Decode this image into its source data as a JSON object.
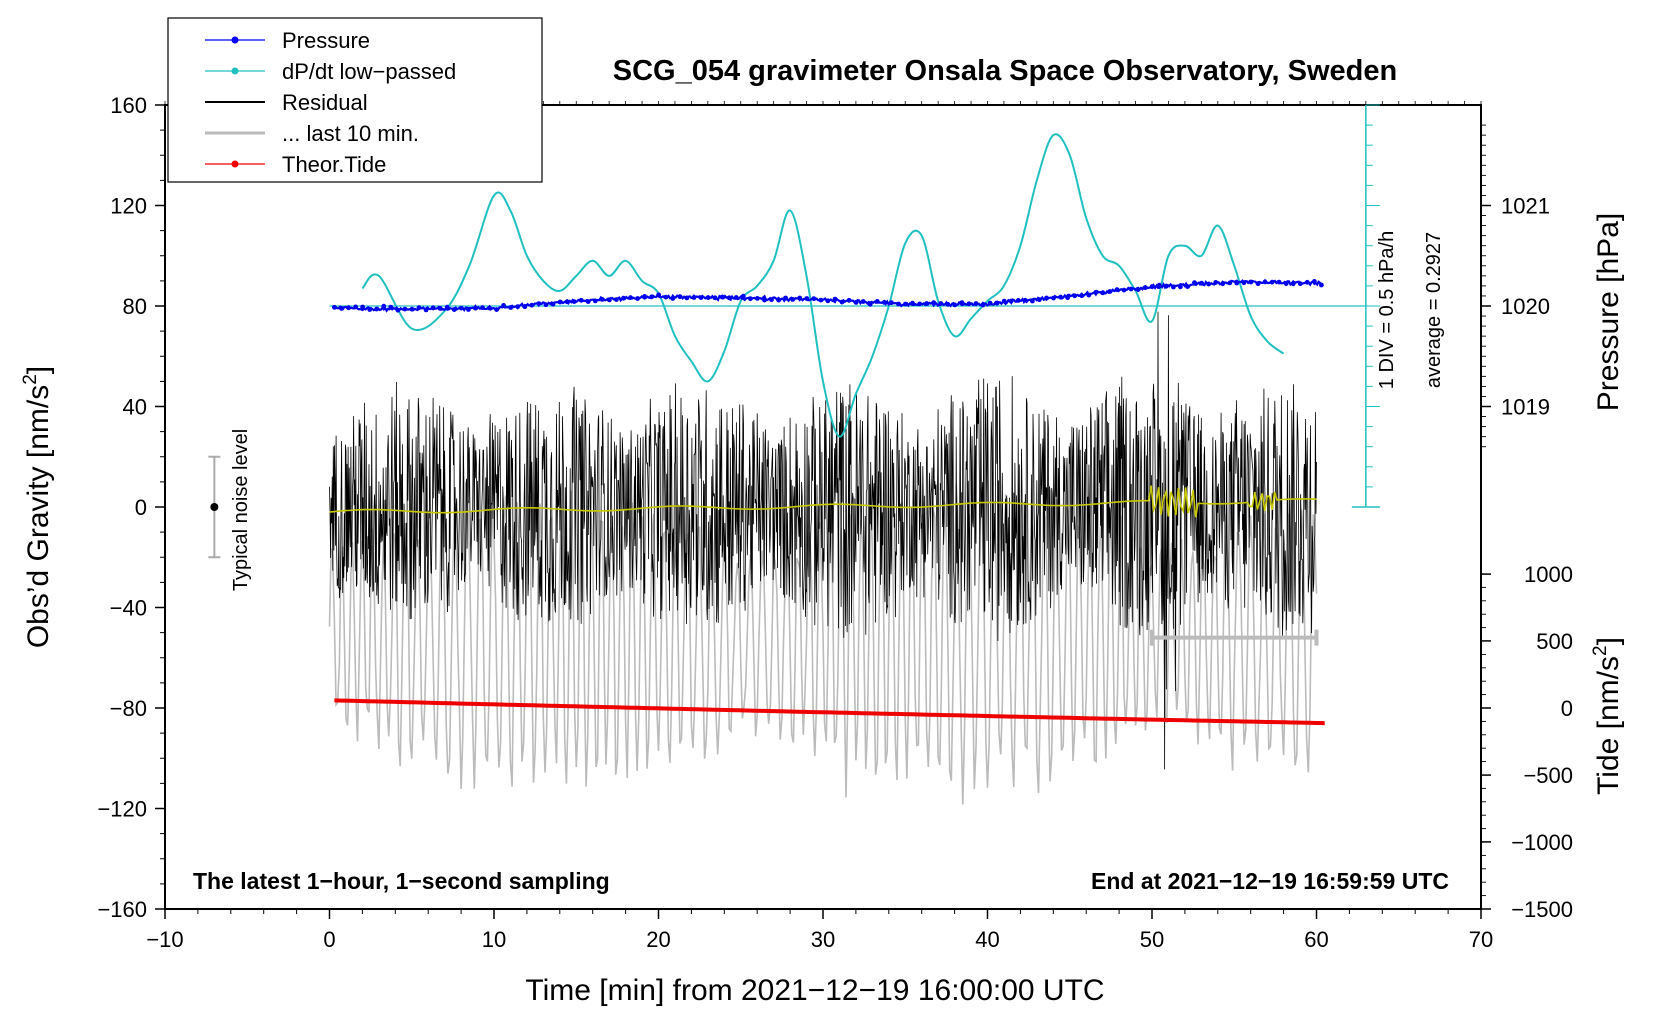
{
  "chart_data": {
    "type": "line",
    "title": "SCG_054 gravimeter Onsala Space Observatory, Sweden",
    "xlabel": "Time [min] from 2021−12−19 16:00:00 UTC",
    "ylabel_left_main": "Obs’d Gravity [nm/s",
    "ylabel_left_sup": "2",
    "ylabel_left_end": "]",
    "ylabel_right_pressure": "Pressure [hPa]",
    "ylabel_right_tide_main": "Tide [nm/s",
    "ylabel_right_tide_sup": "2",
    "ylabel_right_tide_end": "]",
    "xlim": [
      -10,
      70
    ],
    "ylim": [
      -160,
      160
    ],
    "x_ticks": [
      -10,
      0,
      10,
      20,
      30,
      40,
      50,
      60,
      70
    ],
    "x_tick_labels": [
      "−10",
      "0",
      "10",
      "20",
      "30",
      "40",
      "50",
      "60",
      "70"
    ],
    "y_ticks": [
      -160,
      -120,
      -80,
      -40,
      0,
      40,
      80,
      120,
      160
    ],
    "y_tick_labels": [
      "−160",
      "−120",
      "−80",
      "−40",
      "0",
      "40",
      "80",
      "120",
      "160"
    ],
    "pressure_axis": {
      "ticks": [
        1019,
        1020,
        1021
      ],
      "tick_labels": [
        "1019",
        "1020",
        "1021"
      ],
      "gravity_equiv": [
        40,
        80,
        120
      ]
    },
    "tide_axis": {
      "ticks": [
        1000,
        500,
        0,
        -500,
        -1000,
        -1500
      ],
      "tick_labels": [
        "1000",
        "500",
        "0",
        "−500",
        "−1000",
        "−1500"
      ],
      "gravity_equiv": [
        -26.7,
        -53.3,
        -80,
        -106.7,
        -133.3,
        -160
      ]
    },
    "legend": {
      "position": "top-left",
      "entries": [
        {
          "label": "Pressure",
          "color": "#0000ee",
          "marker": true
        },
        {
          "label": "dP/dt low−passed",
          "color": "#20c0c0",
          "marker": true
        },
        {
          "label": "Residual",
          "color": "#000000",
          "marker": false
        },
        {
          "label": "... last 10 min.",
          "color": "#bbbbbb",
          "marker": false
        },
        {
          "label": "Theor.Tide",
          "color": "#ee0000",
          "marker": true
        }
      ]
    },
    "annotations": {
      "bottom_left": "The latest 1−hour, 1−second sampling",
      "bottom_right": "End at 2021−12−19 16:59:59 UTC",
      "noise_label": "Typical noise level",
      "dpdt_scale": "1 DIV = 0.5 hPa/h",
      "dpdt_average": "average = 0.2927"
    },
    "series": [
      {
        "name": "Pressure",
        "color": "#0000ee",
        "unit": "hPa",
        "x": [
          0.3,
          5,
          10,
          15,
          20,
          25,
          30,
          35,
          40,
          45,
          50,
          55,
          60.3
        ],
        "values": [
          1019.98,
          1019.97,
          1019.98,
          1020.05,
          1020.09,
          1020.08,
          1020.06,
          1020.02,
          1020.02,
          1020.1,
          1020.19,
          1020.24,
          1020.23
        ]
      },
      {
        "name": "dP/dt low-passed",
        "color": "#20c0c0",
        "unit": "gravity-equivalent",
        "x": [
          2,
          3,
          5,
          7,
          8.5,
          10,
          11,
          12,
          13,
          14,
          15,
          16,
          17,
          18,
          19,
          20,
          21,
          22,
          23,
          24,
          25,
          26,
          27,
          28,
          29,
          30,
          31,
          32,
          33,
          34,
          35,
          36,
          37,
          38,
          39,
          40,
          41,
          42,
          43,
          44,
          45,
          46,
          47,
          48,
          49,
          50,
          51,
          52,
          53,
          54,
          55,
          56,
          57,
          58
        ],
        "values": [
          87,
          92,
          71,
          78,
          96,
          124,
          118,
          100,
          90,
          86,
          92,
          98,
          92,
          98,
          90,
          85,
          68,
          58,
          50,
          62,
          82,
          88,
          98,
          118,
          92,
          50,
          28,
          45,
          60,
          80,
          105,
          108,
          82,
          68,
          75,
          82,
          88,
          104,
          130,
          148,
          140,
          115,
          100,
          96,
          86,
          74,
          100,
          104,
          100,
          112,
          96,
          76,
          66,
          61
        ]
      },
      {
        "name": "Residual",
        "color": "#000000",
        "x": [
          0,
          60
        ],
        "envelope_amplitude": [
          35,
          40
        ],
        "values": [
          0,
          0
        ]
      },
      {
        "name": "... last 10 min.",
        "color": "#bbbbbb",
        "x": [
          50,
          60
        ],
        "values": [
          -52,
          -52
        ]
      },
      {
        "name": "Theor.Tide",
        "color": "#ee0000",
        "unit": "nm/s2",
        "x": [
          0.3,
          10,
          20,
          30,
          40,
          50,
          60.5
        ],
        "values": [
          57,
          27,
          -3,
          -32,
          -60,
          -87,
          -113
        ]
      }
    ]
  }
}
